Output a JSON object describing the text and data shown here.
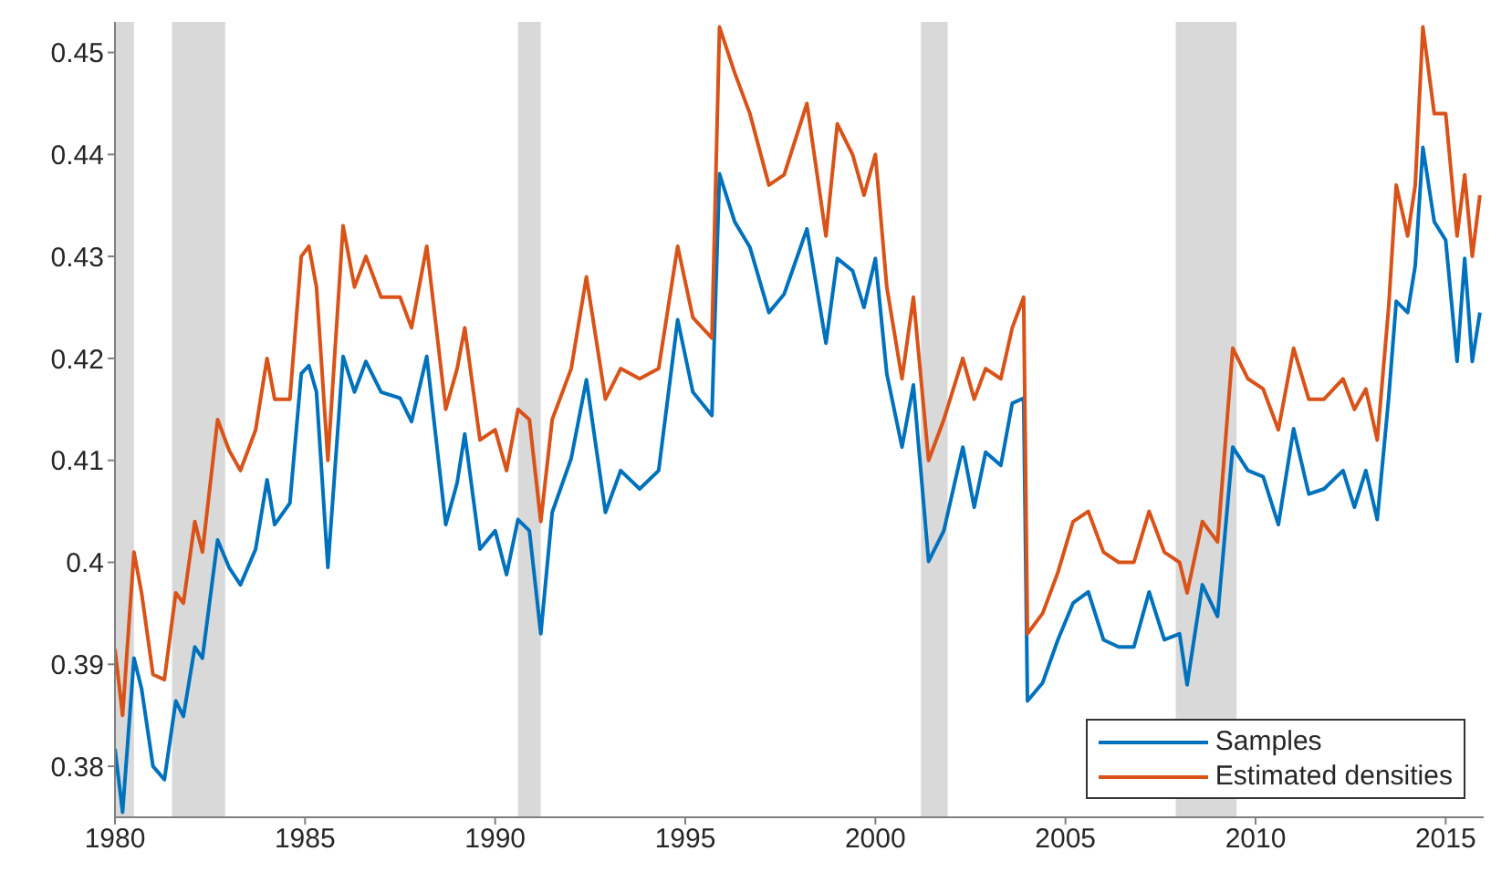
{
  "chart_data": {
    "type": "line",
    "xlim": [
      1980,
      2016
    ],
    "xticks": [
      1980,
      1985,
      1990,
      1995,
      2000,
      2005,
      2010,
      2015
    ],
    "ylim": [
      0.375,
      0.453
    ],
    "yticks": [
      0.38,
      0.39,
      0.4,
      0.41,
      0.42,
      0.43,
      0.44,
      0.45
    ],
    "grid": false,
    "legend": "bottom right",
    "line_style": "solid",
    "x": [
      1980.0,
      1980.2,
      1980.5,
      1980.7,
      1981.0,
      1981.3,
      1981.6,
      1981.8,
      1982.1,
      1982.3,
      1982.7,
      1983.0,
      1983.3,
      1983.7,
      1984.0,
      1984.2,
      1984.6,
      1984.9,
      1985.1,
      1985.3,
      1985.6,
      1986.0,
      1986.3,
      1986.6,
      1987.0,
      1987.5,
      1987.8,
      1988.2,
      1988.7,
      1989.0,
      1989.2,
      1989.6,
      1990.0,
      1990.3,
      1990.6,
      1990.9,
      1991.2,
      1991.5,
      1992.0,
      1992.4,
      1992.9,
      1993.3,
      1993.8,
      1994.3,
      1994.8,
      1995.2,
      1995.7,
      1995.9,
      1996.3,
      1996.7,
      1997.2,
      1997.6,
      1998.2,
      1998.7,
      1999.0,
      1999.4,
      1999.7,
      2000.0,
      2000.3,
      2000.7,
      2001.0,
      2001.4,
      2001.8,
      2002.3,
      2002.6,
      2002.9,
      2003.3,
      2003.6,
      2003.9,
      2004.0,
      2004.4,
      2004.8,
      2005.2,
      2005.6,
      2006.0,
      2006.4,
      2006.8,
      2007.2,
      2007.6,
      2008.0,
      2008.2,
      2008.6,
      2009.0,
      2009.4,
      2009.8,
      2010.2,
      2010.6,
      2011.0,
      2011.4,
      2011.8,
      2012.3,
      2012.6,
      2012.9,
      2013.2,
      2013.5,
      2013.7,
      2014.0,
      2014.2,
      2014.4,
      2014.7,
      2015.0,
      2015.3,
      2015.5,
      2015.7,
      2015.9
    ],
    "series": [
      {
        "name": "Samples",
        "color": "#0072bd",
        "values": [
          0.3817,
          0.3755,
          0.3906,
          0.3876,
          0.38,
          0.3787,
          0.3864,
          0.3849,
          0.3917,
          0.3906,
          0.4022,
          0.3995,
          0.3978,
          0.4013,
          0.4081,
          0.4037,
          0.4058,
          0.4185,
          0.4193,
          0.4167,
          0.3995,
          0.4202,
          0.4167,
          0.4197,
          0.4167,
          0.4161,
          0.4138,
          0.4202,
          0.4037,
          0.4078,
          0.4126,
          0.4013,
          0.4031,
          0.3988,
          0.4042,
          0.4031,
          0.393,
          0.4049,
          0.4102,
          0.4179,
          0.4049,
          0.409,
          0.4072,
          0.409,
          0.4238,
          0.4167,
          0.4144,
          0.4381,
          0.4334,
          0.4309,
          0.4245,
          0.4263,
          0.4327,
          0.4215,
          0.4298,
          0.4286,
          0.425,
          0.4298,
          0.4185,
          0.4113,
          0.4174,
          0.4001,
          0.4031,
          0.4113,
          0.4054,
          0.4108,
          0.4095,
          0.4156,
          0.4161,
          0.3864,
          0.3882,
          0.3924,
          0.396,
          0.3971,
          0.3924,
          0.3917,
          0.3917,
          0.3971,
          0.3924,
          0.393,
          0.388,
          0.3978,
          0.3947,
          0.4113,
          0.409,
          0.4084,
          0.4037,
          0.4131,
          0.4067,
          0.4072,
          0.409,
          0.4054,
          0.409,
          0.4042,
          0.4161,
          0.4256,
          0.4245,
          0.4291,
          0.4407,
          0.4334,
          0.4316,
          0.4197,
          0.4298,
          0.4197,
          0.4245
        ]
      },
      {
        "name": "Estimated densities",
        "color": "#d95319",
        "values": [
          0.3915,
          0.385,
          0.401,
          0.397,
          0.389,
          0.3885,
          0.397,
          0.396,
          0.404,
          0.401,
          0.414,
          0.411,
          0.409,
          0.413,
          0.42,
          0.416,
          0.416,
          0.43,
          0.431,
          0.427,
          0.41,
          0.433,
          0.427,
          0.43,
          0.426,
          0.426,
          0.423,
          0.431,
          0.415,
          0.419,
          0.423,
          0.412,
          0.413,
          0.409,
          0.415,
          0.414,
          0.404,
          0.414,
          0.419,
          0.428,
          0.416,
          0.419,
          0.418,
          0.419,
          0.431,
          0.424,
          0.422,
          0.4525,
          0.448,
          0.444,
          0.437,
          0.438,
          0.445,
          0.432,
          0.443,
          0.44,
          0.436,
          0.44,
          0.427,
          0.418,
          0.426,
          0.41,
          0.414,
          0.42,
          0.416,
          0.419,
          0.418,
          0.423,
          0.426,
          0.393,
          0.395,
          0.399,
          0.404,
          0.405,
          0.401,
          0.4,
          0.4,
          0.405,
          0.401,
          0.4,
          0.397,
          0.404,
          0.402,
          0.421,
          0.418,
          0.417,
          0.413,
          0.421,
          0.416,
          0.416,
          0.418,
          0.415,
          0.417,
          0.412,
          0.425,
          0.437,
          0.432,
          0.437,
          0.4525,
          0.444,
          0.444,
          0.432,
          0.438,
          0.43,
          0.436
        ]
      }
    ],
    "bands": [
      {
        "axis": "x",
        "from": 1980.0,
        "to": 1980.5,
        "color": "#d9d9d9"
      },
      {
        "axis": "x",
        "from": 1981.5,
        "to": 1982.9,
        "color": "#d9d9d9"
      },
      {
        "axis": "x",
        "from": 1990.6,
        "to": 1991.2,
        "color": "#d9d9d9"
      },
      {
        "axis": "x",
        "from": 2001.2,
        "to": 2001.9,
        "color": "#d9d9d9"
      },
      {
        "axis": "x",
        "from": 2007.9,
        "to": 2009.5,
        "color": "#d9d9d9"
      }
    ]
  }
}
